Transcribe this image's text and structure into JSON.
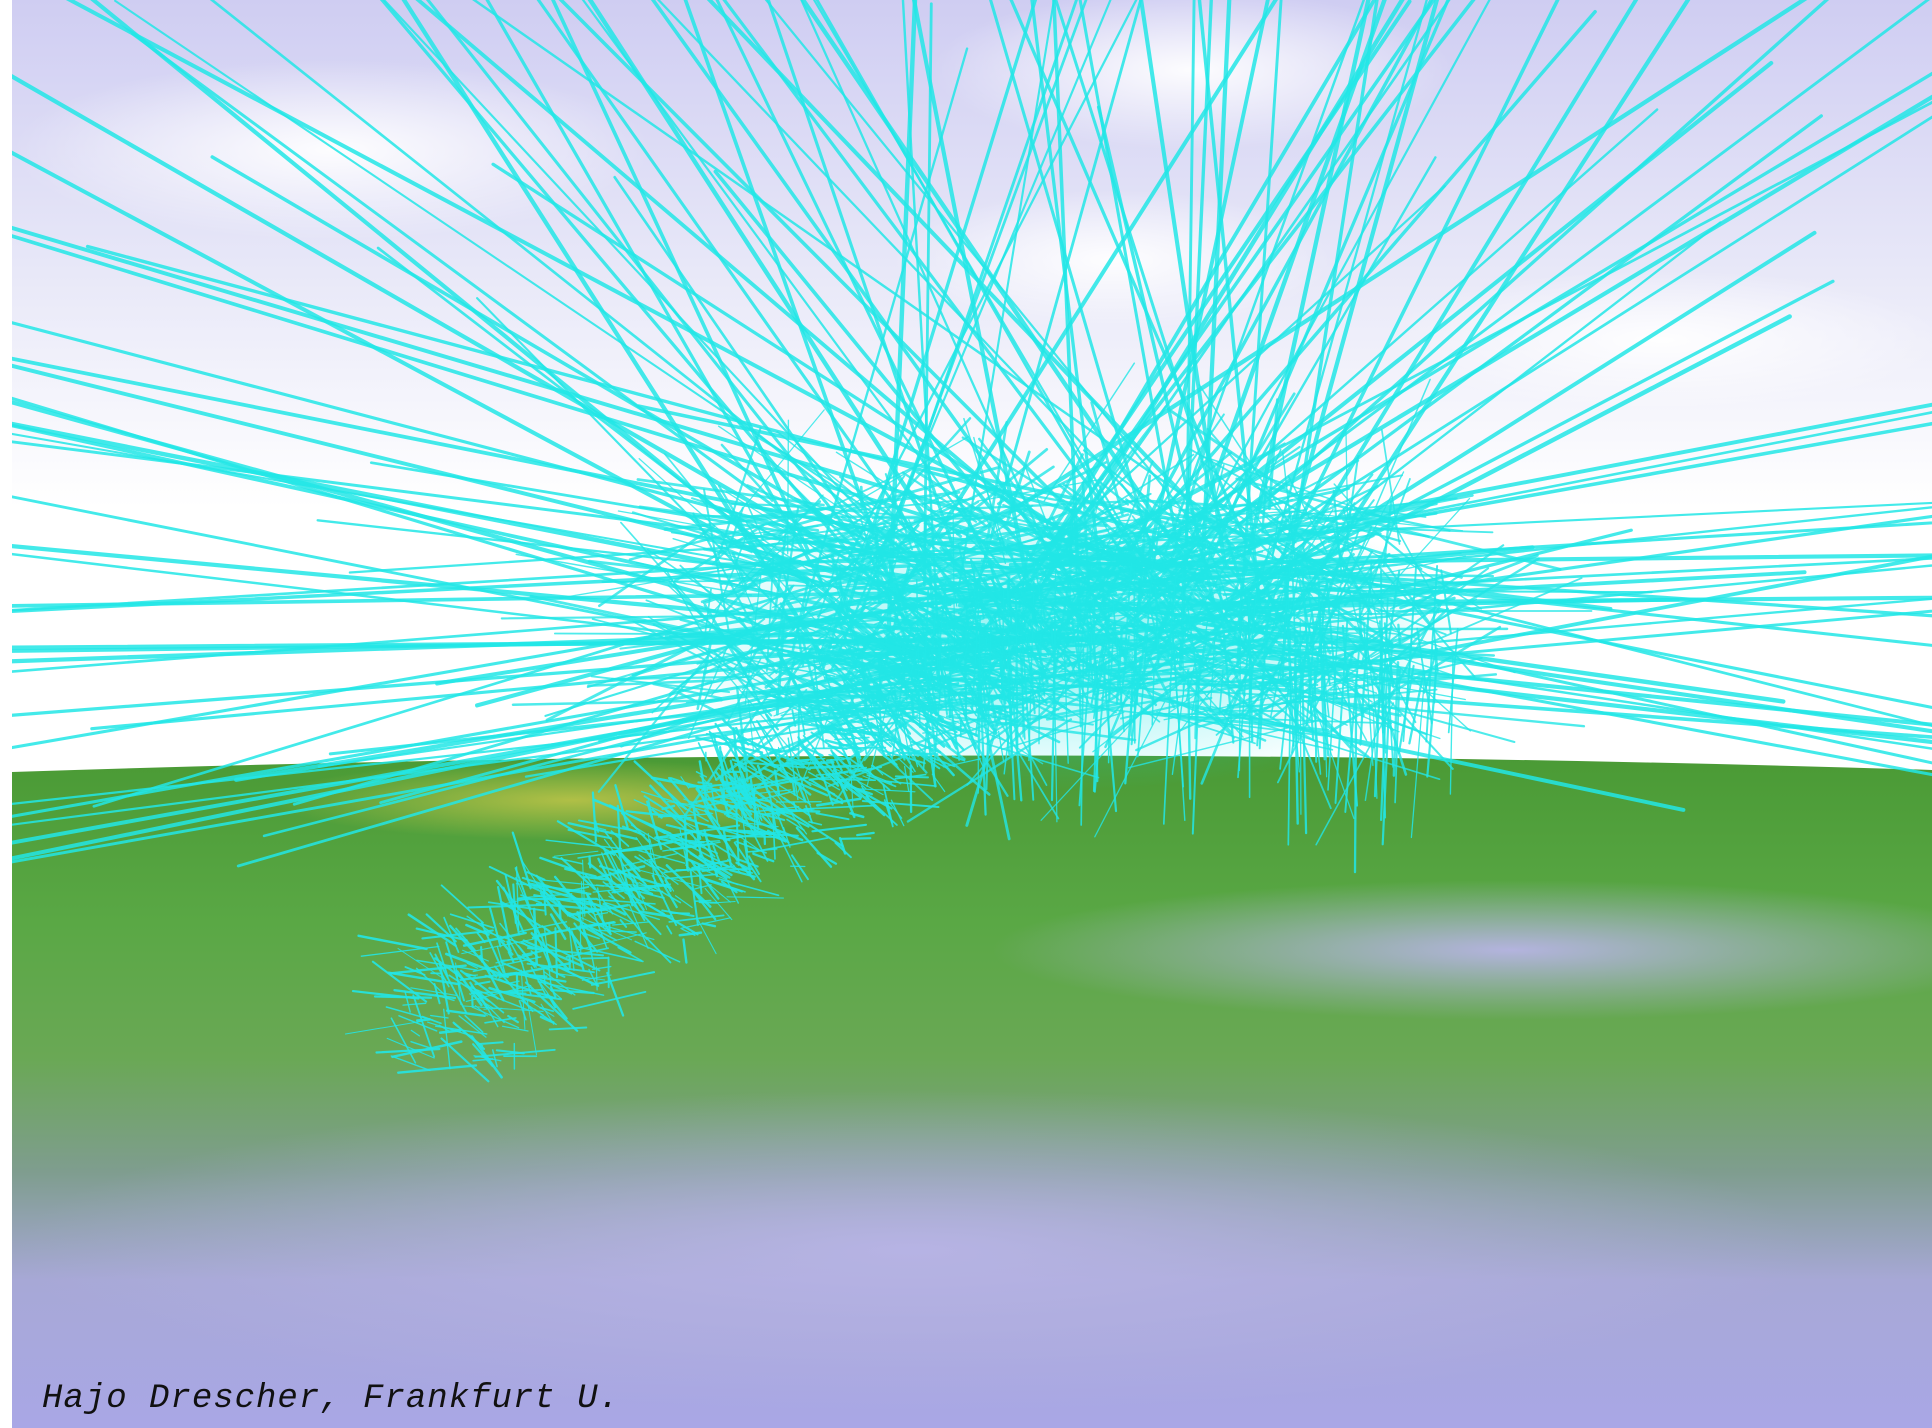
{
  "credit": "Hajo Drescher, Frankfurt U.",
  "colors": {
    "tracks": "#22e6e6",
    "sky_top": "#c8c8f0",
    "sky_bottom": "#ffffff",
    "ground": "#4f9a3a",
    "ground_far": "#6fb040",
    "reflection": "#b0b0e0"
  }
}
